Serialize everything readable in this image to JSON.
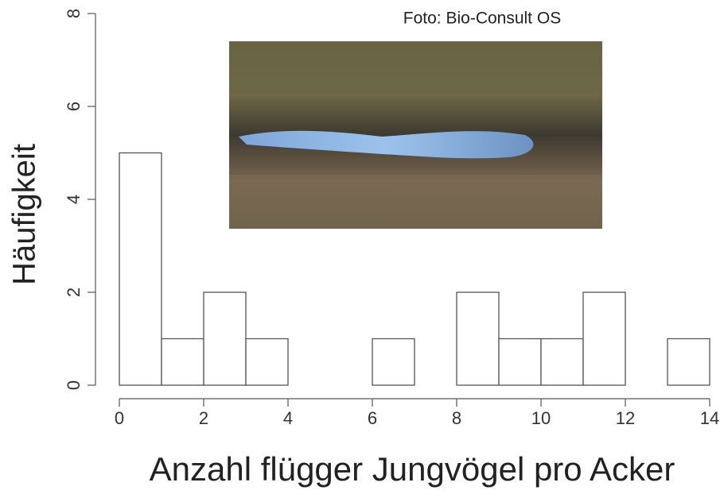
{
  "chart_data": {
    "type": "histogram",
    "xlabel": "Anzahl flügger Jungvögel pro Acker",
    "ylabel": "Häufigkeit",
    "annotation": "Foto: Bio-Consult OS",
    "bins": [
      0,
      1,
      2,
      3,
      4,
      5,
      6,
      7,
      8,
      9,
      10,
      11,
      12,
      13,
      14
    ],
    "values": [
      5,
      1,
      2,
      1,
      0,
      0,
      1,
      0,
      2,
      1,
      1,
      2,
      0,
      1
    ],
    "color": "#ffffff",
    "edgecolor": "#555555",
    "xlim": [
      0,
      14
    ],
    "xticks": [
      0,
      2,
      4,
      6,
      8,
      10,
      12,
      14
    ],
    "ylim": [
      0,
      8
    ],
    "yticks": [
      0,
      2,
      4,
      6,
      8
    ]
  }
}
